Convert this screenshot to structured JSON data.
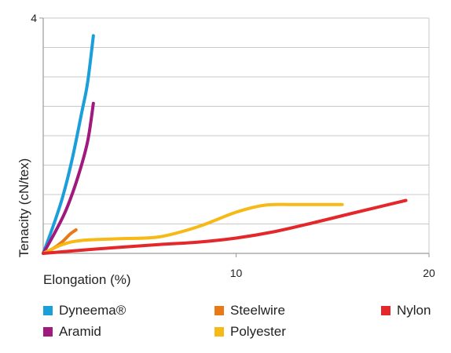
{
  "chart_data": {
    "type": "line",
    "xlabel": "Elongation (%)",
    "ylabel": "Tenacity (cN/tex)",
    "xlim": [
      0,
      20
    ],
    "ylim": [
      0,
      4
    ],
    "x_ticks": [
      10,
      20
    ],
    "y_ticks": [
      4
    ],
    "grid": "horizontal",
    "series": [
      {
        "name": "Dyneema®",
        "color": "#1a9fdb",
        "points": [
          [
            0,
            0
          ],
          [
            0.5,
            0.45
          ],
          [
            1.0,
            0.95
          ],
          [
            1.5,
            1.6
          ],
          [
            2.0,
            2.4
          ],
          [
            2.3,
            2.9
          ],
          [
            2.6,
            3.7
          ]
        ]
      },
      {
        "name": "Aramid",
        "color": "#a0197c",
        "points": [
          [
            0,
            0
          ],
          [
            0.6,
            0.35
          ],
          [
            1.2,
            0.75
          ],
          [
            1.8,
            1.3
          ],
          [
            2.3,
            1.9
          ],
          [
            2.6,
            2.55
          ]
        ]
      },
      {
        "name": "Steelwire",
        "color": "#e97817",
        "points": [
          [
            0,
            0
          ],
          [
            0.5,
            0.08
          ],
          [
            1.0,
            0.2
          ],
          [
            1.4,
            0.33
          ],
          [
            1.7,
            0.4
          ]
        ]
      },
      {
        "name": "Polyester",
        "color": "#f6b915",
        "points": [
          [
            0,
            0
          ],
          [
            1,
            0.15
          ],
          [
            2,
            0.22
          ],
          [
            4,
            0.25
          ],
          [
            6,
            0.28
          ],
          [
            8,
            0.45
          ],
          [
            10,
            0.7
          ],
          [
            11.5,
            0.82
          ],
          [
            13,
            0.83
          ],
          [
            15.5,
            0.83
          ]
        ]
      },
      {
        "name": "Nylon",
        "color": "#e3272b",
        "points": [
          [
            0,
            0
          ],
          [
            3,
            0.08
          ],
          [
            6,
            0.15
          ],
          [
            8,
            0.19
          ],
          [
            10,
            0.26
          ],
          [
            12,
            0.37
          ],
          [
            14,
            0.52
          ],
          [
            16,
            0.68
          ],
          [
            18.8,
            0.9
          ]
        ]
      }
    ]
  },
  "legend": {
    "items": [
      {
        "label": "Dyneema®",
        "color": "#1a9fdb"
      },
      {
        "label": "Steelwire",
        "color": "#e97817"
      },
      {
        "label": "Nylon",
        "color": "#e3272b"
      },
      {
        "label": "Aramid",
        "color": "#a0197c"
      },
      {
        "label": "Polyester",
        "color": "#f6b915"
      }
    ]
  }
}
